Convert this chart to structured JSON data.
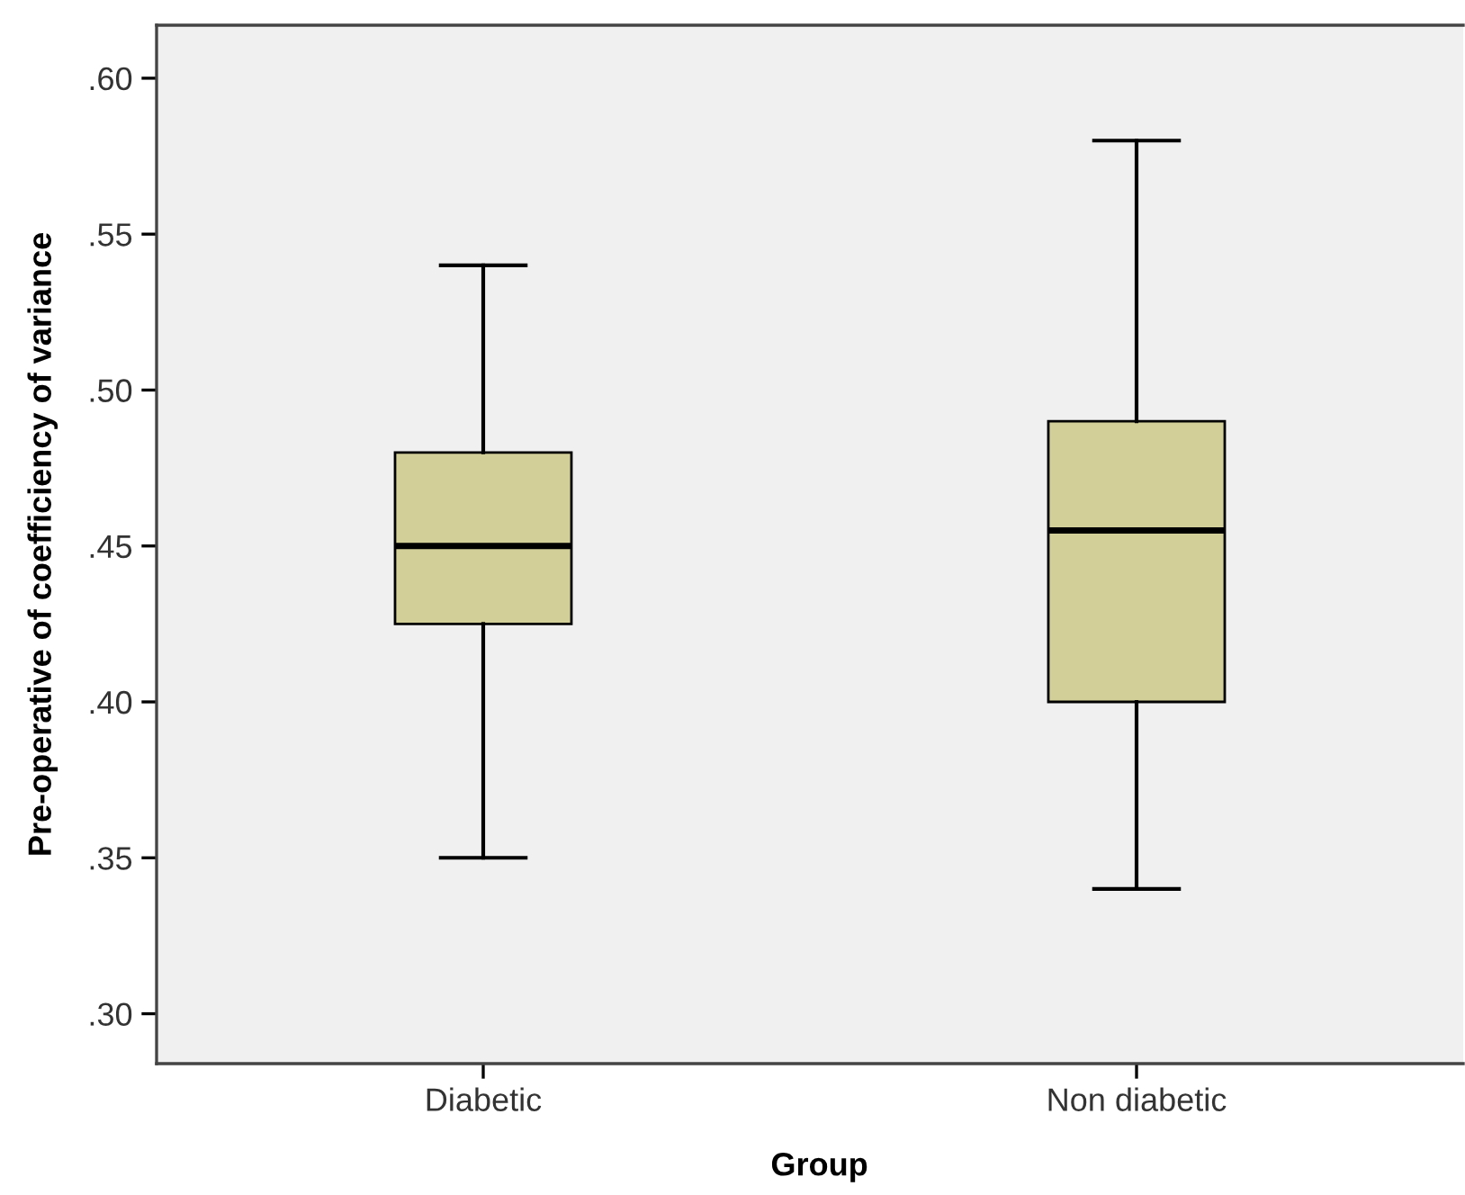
{
  "chart_data": {
    "type": "box",
    "xlabel": "Group",
    "ylabel": "Pre-operative of coefficiency of variance",
    "categories": [
      "Diabetic",
      "Non diabetic"
    ],
    "boxes": [
      {
        "low": 0.35,
        "q1": 0.425,
        "median": 0.45,
        "q3": 0.48,
        "high": 0.54
      },
      {
        "low": 0.34,
        "q1": 0.4,
        "median": 0.455,
        "q3": 0.49,
        "high": 0.58
      }
    ],
    "color": "#d3cf99",
    "ylim": [
      0.284,
      0.617
    ],
    "yticks": [
      {
        "value": 0.3,
        "label": ".30"
      },
      {
        "value": 0.35,
        "label": ".35"
      },
      {
        "value": 0.4,
        "label": ".40"
      },
      {
        "value": 0.45,
        "label": ".45"
      },
      {
        "value": 0.5,
        "label": ".50"
      },
      {
        "value": 0.55,
        "label": ".55"
      },
      {
        "value": 0.6,
        "label": ".60"
      }
    ],
    "grid": false
  }
}
